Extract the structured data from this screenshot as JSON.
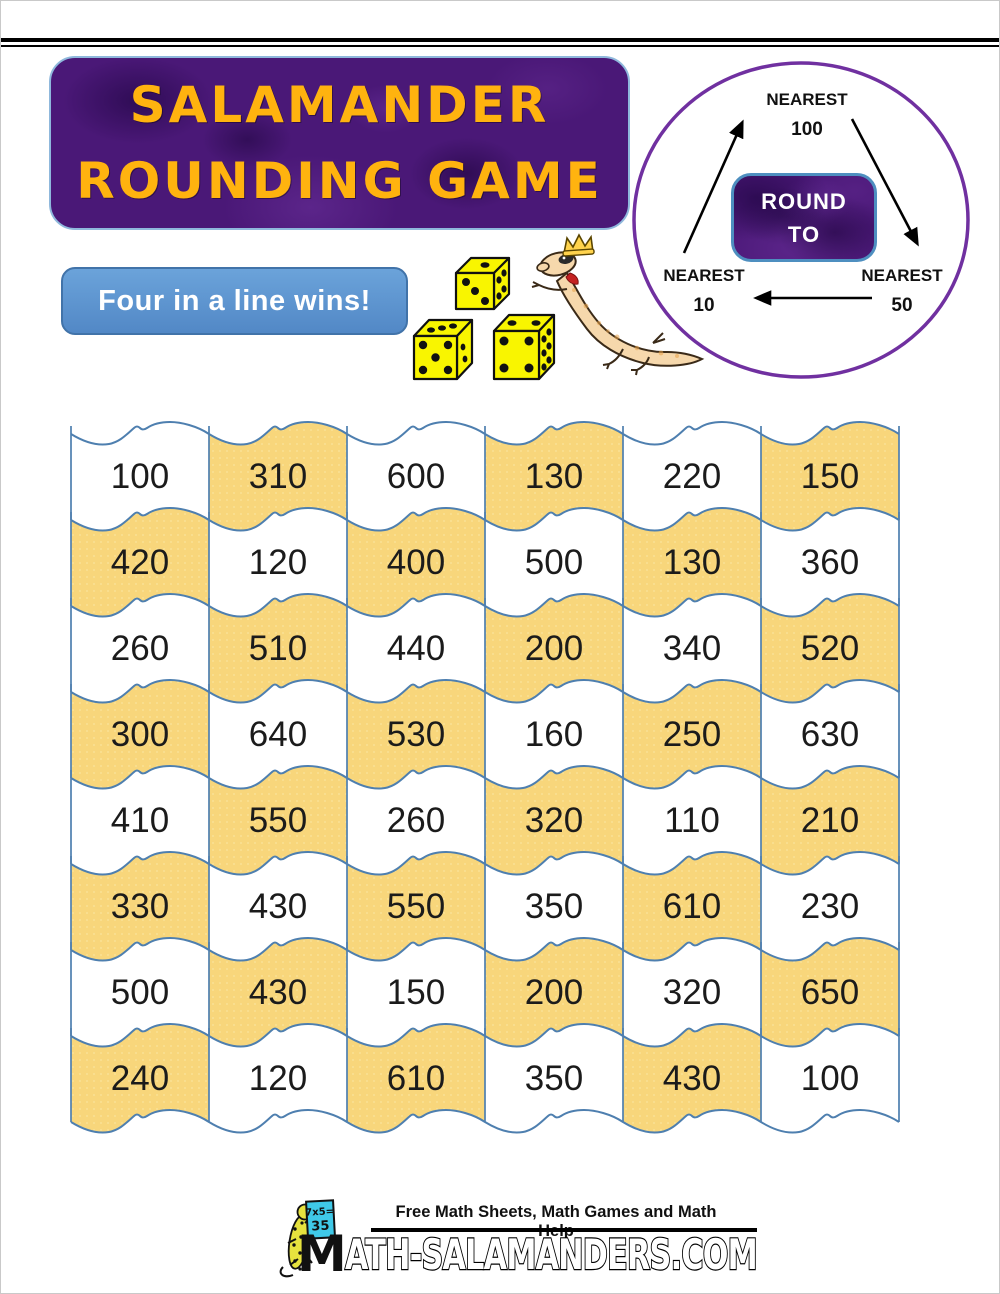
{
  "colors": {
    "purple_box": "#4A1877",
    "purple_circle": "#7030A0",
    "title_text": "#FFB30F",
    "blue_box": "#5B93D0",
    "gold_cell": "#F8D67B",
    "white_cell": "#FFFFFF",
    "grid_line": "#4E7FAF",
    "number_text": "#1B1B1B",
    "die_yellow": "#F9F500",
    "board_cyan": "#3FC9E8"
  },
  "header": {
    "line1": "SALAMANDER",
    "line2": "ROUNDING GAME"
  },
  "cycle": {
    "center_line1": "ROUND",
    "center_line2": "TO",
    "top": {
      "label": "NEAREST",
      "value": "100"
    },
    "bottom_right": {
      "label": "NEAREST",
      "value": "50"
    },
    "bottom_left": {
      "label": "NEAREST",
      "value": "10"
    }
  },
  "instruction": {
    "text": "Four in a line wins!"
  },
  "board": {
    "rows": 8,
    "cols": 6,
    "cells": [
      [
        "100",
        "310",
        "600",
        "130",
        "220",
        "150"
      ],
      [
        "420",
        "120",
        "400",
        "500",
        "130",
        "360"
      ],
      [
        "260",
        "510",
        "440",
        "200",
        "340",
        "520"
      ],
      [
        "300",
        "640",
        "530",
        "160",
        "250",
        "630"
      ],
      [
        "410",
        "550",
        "260",
        "320",
        "110",
        "210"
      ],
      [
        "330",
        "430",
        "550",
        "350",
        "610",
        "230"
      ],
      [
        "500",
        "430",
        "150",
        "200",
        "320",
        "650"
      ],
      [
        "240",
        "120",
        "610",
        "350",
        "430",
        "100"
      ]
    ]
  },
  "footer": {
    "tagline": "Free Math Sheets, Math Games and Math Help",
    "logo_m": "M",
    "site": "ATH-SALAMANDERS.COM",
    "board_line1": "7x5=",
    "board_line2": "35"
  }
}
